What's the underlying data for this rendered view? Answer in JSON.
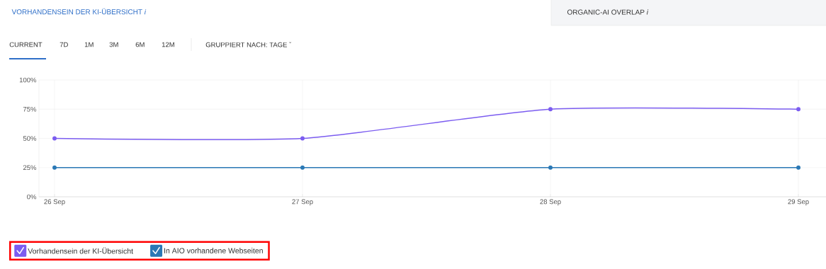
{
  "chart_data": {
    "type": "line",
    "title": "VORHANDENSEIN DER KI-ÜBERSICHT *i*",
    "subtitle": "ORGANIC-AI OVERLAP *i*",
    "annotations": [
      "CURRENT",
      "7D",
      "1M",
      "3M",
      "6M",
      "12M",
      "GRUPPIERT NACH: TAGE ˇ"
    ],
    "categories": [
      "26 Sep",
      "27 Sep",
      "28 Sep",
      "29 Sep"
    ],
    "series": [
      {
        "name": "Vorhandensein der KI-Übersicht",
        "color": "#7b5cf0",
        "values": [
          50,
          50,
          75,
          75
        ]
      },
      {
        "name": "In AIO vorhandene Webseiten",
        "color": "#2a78b5",
        "values": [
          25,
          25,
          25,
          25
        ]
      }
    ],
    "ylim": [
      0,
      100
    ],
    "yticks": [
      {
        "value": 0,
        "label": "0%"
      },
      {
        "value": 25,
        "label": "25%"
      },
      {
        "value": 50,
        "label": "50%"
      },
      {
        "value": 75,
        "label": "75%"
      },
      {
        "value": 100,
        "label": "100%"
      }
    ],
    "grid": true,
    "legend": "bottom left",
    "marker": "circle",
    "line_style": "solid"
  }
}
